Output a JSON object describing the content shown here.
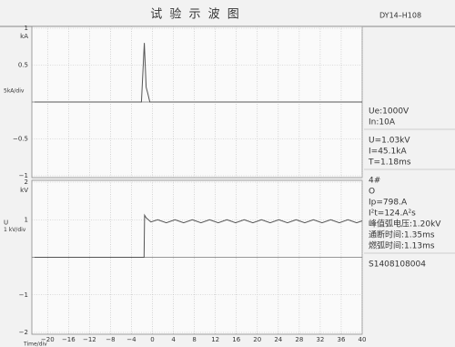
{
  "header": {
    "title": "试 验 示 波 图",
    "code": "DY14–H108"
  },
  "chart_data": [
    {
      "type": "line",
      "unit": "kA",
      "scale_label": "5kA/div",
      "color": "#555555",
      "grid": true,
      "xlim": [
        -23,
        40
      ],
      "ylim": [
        -1,
        1
      ],
      "xticks": [
        {
          "value": -20,
          "label": "−20"
        },
        {
          "value": -16,
          "label": "−16"
        },
        {
          "value": -12,
          "label": "−12"
        },
        {
          "value": -8,
          "label": "−8"
        },
        {
          "value": -4,
          "label": "−4"
        },
        0,
        4,
        8,
        12,
        16,
        20,
        24,
        28,
        32,
        36,
        40
      ],
      "yticks": [
        {
          "value": -1,
          "label": "−1"
        },
        {
          "value": -0.5,
          "label": "−0.5"
        },
        0.5,
        1
      ],
      "x": [
        -22.5,
        -2.1,
        -1.55,
        -1.2,
        -0.9,
        -0.5,
        40
      ],
      "values": [
        0,
        0,
        0.8,
        0.2,
        0.12,
        0,
        0
      ]
    },
    {
      "type": "line",
      "unit": "kV",
      "axis_label": "U",
      "scale_label": "1 kV/div",
      "color": "#555555",
      "grid": true,
      "xlabel": "Time/div",
      "xlim": [
        -23,
        40
      ],
      "ylim": [
        -2,
        2
      ],
      "xticks": [
        {
          "value": -20,
          "label": "−20"
        },
        {
          "value": -16,
          "label": "−16"
        },
        {
          "value": -12,
          "label": "−12"
        },
        {
          "value": -8,
          "label": "−8"
        },
        {
          "value": -4,
          "label": "−4"
        },
        0,
        4,
        8,
        12,
        16,
        20,
        24,
        28,
        32,
        36,
        40
      ],
      "yticks": [
        {
          "value": -2,
          "label": "−2"
        },
        {
          "value": -1,
          "label": "−1"
        },
        1,
        2
      ],
      "x": [
        -22.5,
        -1.6,
        -1.5,
        -1.2,
        -0.3,
        1,
        2.65,
        4.3,
        5.95,
        7.6,
        9.25,
        10.9,
        12.55,
        14.2,
        15.85,
        17.5,
        19.15,
        20.8,
        22.45,
        24.1,
        25.75,
        27.4,
        29.05,
        30.7,
        32.35,
        34,
        35.65,
        37.3,
        38.95,
        40
      ],
      "values": [
        0,
        0,
        1.12,
        1.05,
        0.94,
        1.0,
        0.92,
        1.0,
        0.92,
        1.0,
        0.92,
        1.0,
        0.92,
        1.0,
        0.92,
        1.0,
        0.92,
        1.0,
        0.92,
        1.0,
        0.92,
        1.0,
        0.92,
        1.0,
        0.92,
        1.0,
        0.92,
        1.0,
        0.92,
        0.97
      ]
    }
  ],
  "info": [
    [
      "Ue:1000V",
      "In:10A"
    ],
    [
      "U=1.03kV",
      "I=45.1kA",
      "T=1.18ms"
    ],
    [
      "4#",
      "O",
      "Ip=798.A",
      "I²t=124.A²s",
      "峰值弧电压:1.20kV",
      "通断时间:1.35ms",
      "燃弧时间:1.13ms"
    ],
    [
      "S1408108004"
    ]
  ]
}
